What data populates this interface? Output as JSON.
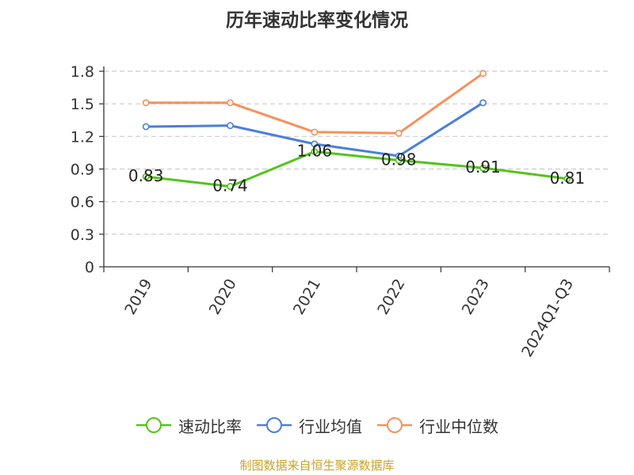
{
  "title": "历年速动比率变化情况",
  "source": "制图数据来自恒生聚源数据库",
  "chart_data": {
    "type": "line",
    "title": "历年速动比率变化情况",
    "categories": [
      "2019",
      "2020",
      "2021",
      "2022",
      "2023",
      "2024Q1-Q3"
    ],
    "ylim": [
      0,
      1.8
    ],
    "yticks": [
      "0",
      "0.3",
      "0.6",
      "0.9",
      "1.2",
      "1.5",
      "1.8"
    ],
    "grid": true,
    "legend_position": "bottom",
    "series": [
      {
        "name": "速动比率",
        "color": "#52c41a",
        "values": [
          0.83,
          0.74,
          1.06,
          0.98,
          0.91,
          0.81
        ],
        "labels": [
          "0.83",
          "0.74",
          "1.06",
          "0.98",
          "0.91",
          "0.81"
        ]
      },
      {
        "name": "行业均值",
        "color": "#4a7fdc",
        "values": [
          1.29,
          1.3,
          1.13,
          1.02,
          1.51,
          null
        ]
      },
      {
        "name": "行业中位数",
        "color": "#f7905a",
        "values": [
          1.51,
          1.51,
          1.24,
          1.23,
          1.78,
          null
        ]
      }
    ]
  }
}
